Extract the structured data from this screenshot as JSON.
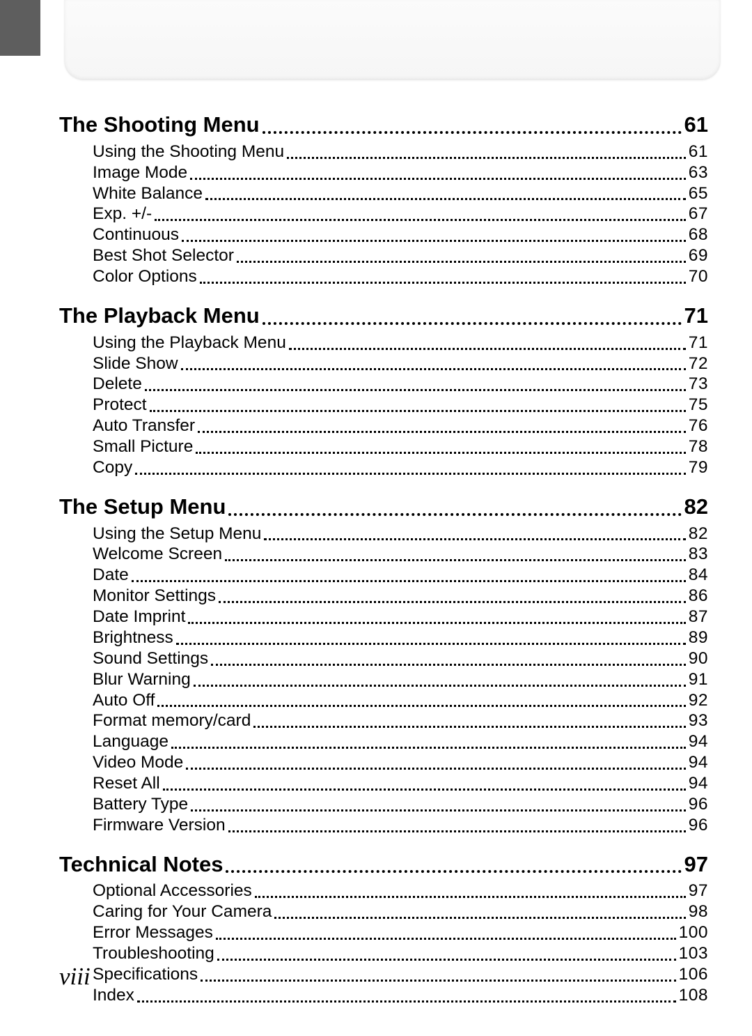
{
  "pageNumber": "viii",
  "colors": {
    "sideTab": "#5e5e5e",
    "background": "#ffffff",
    "text": "#000000"
  },
  "sections": [
    {
      "title": "The Shooting Menu",
      "page": "61",
      "items": [
        {
          "title": "Using the Shooting Menu",
          "page": "61"
        },
        {
          "title": "Image Mode",
          "page": "63"
        },
        {
          "title": "White Balance",
          "page": "65"
        },
        {
          "title": "Exp. +/-",
          "page": "67"
        },
        {
          "title": "Continuous",
          "page": "68"
        },
        {
          "title": "Best Shot Selector",
          "page": "69"
        },
        {
          "title": "Color Options",
          "page": "70"
        }
      ]
    },
    {
      "title": "The Playback Menu",
      "page": "71",
      "items": [
        {
          "title": "Using the Playback Menu",
          "page": "71"
        },
        {
          "title": "Slide Show",
          "page": "72"
        },
        {
          "title": "Delete",
          "page": "73"
        },
        {
          "title": "Protect",
          "page": "75"
        },
        {
          "title": "Auto Transfer",
          "page": "76"
        },
        {
          "title": "Small Picture",
          "page": "78"
        },
        {
          "title": "Copy",
          "page": "79"
        }
      ]
    },
    {
      "title": "The Setup Menu",
      "page": "82",
      "items": [
        {
          "title": "Using the Setup Menu",
          "page": "82"
        },
        {
          "title": "Welcome Screen",
          "page": "83"
        },
        {
          "title": "Date",
          "page": "84"
        },
        {
          "title": "Monitor Settings",
          "page": "86"
        },
        {
          "title": "Date Imprint",
          "page": "87"
        },
        {
          "title": "Brightness",
          "page": "89"
        },
        {
          "title": "Sound Settings",
          "page": "90"
        },
        {
          "title": "Blur Warning",
          "page": "91"
        },
        {
          "title": "Auto Off",
          "page": "92"
        },
        {
          "title": "Format memory/card",
          "page": "93"
        },
        {
          "title": "Language",
          "page": "94"
        },
        {
          "title": "Video Mode",
          "page": "94"
        },
        {
          "title": "Reset All",
          "page": "94"
        },
        {
          "title": "Battery Type",
          "page": "96"
        },
        {
          "title": "Firmware Version",
          "page": "96"
        }
      ]
    },
    {
      "title": "Technical Notes",
      "page": "97",
      "items": [
        {
          "title": "Optional Accessories",
          "page": "97"
        },
        {
          "title": "Caring for Your Camera",
          "page": "98"
        },
        {
          "title": "Error Messages",
          "page": "100"
        },
        {
          "title": "Troubleshooting",
          "page": "103"
        },
        {
          "title": "Specifications",
          "page": "106"
        },
        {
          "title": "Index",
          "page": "108"
        }
      ]
    }
  ]
}
